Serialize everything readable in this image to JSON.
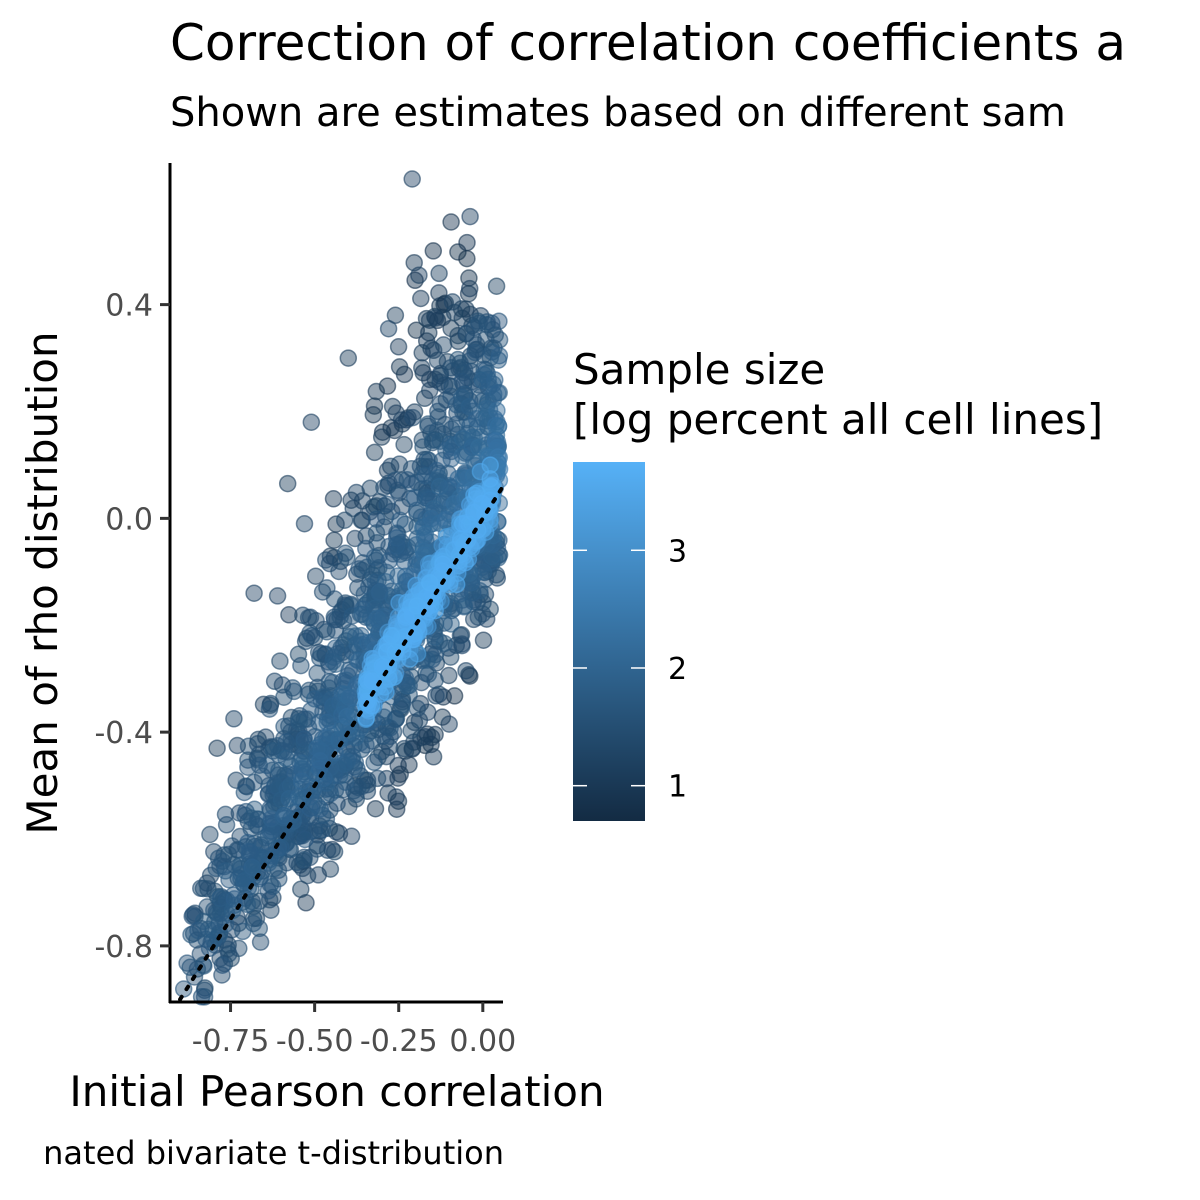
{
  "chart_data": {
    "type": "scatter",
    "title": "Correction of correlation coefficients a",
    "subtitle": "Shown are estimates based on different sam",
    "caption": "nated bivariate t-distribution",
    "xlabel": "Initial Pearson correlation",
    "ylabel": "Mean of rho distribution",
    "xlim": [
      -0.93,
      0.06
    ],
    "ylim": [
      -0.905,
      0.665
    ],
    "x_ticks": [
      -0.75,
      -0.5,
      -0.25,
      0.0
    ],
    "x_tick_labels": [
      "-0.75",
      "-0.50",
      "-0.25",
      "0.00"
    ],
    "y_ticks": [
      -0.8,
      -0.4,
      0.0,
      0.4
    ],
    "y_tick_labels": [
      "-0.8",
      "-0.4",
      "0.0",
      "0.4"
    ],
    "grid": false,
    "reference_line": {
      "style": "dotted",
      "slope": 1,
      "intercept": 0
    },
    "color_scale": {
      "title": "Sample size\n[log percent all cell lines]",
      "min": 0.7,
      "max": 3.75,
      "low_color": "#132b43",
      "high_color": "#56b1f7",
      "ticks": [
        1,
        2,
        3
      ],
      "tick_labels": [
        "1",
        "2",
        "3"
      ]
    },
    "point_cloud": {
      "x_range": [
        -0.9,
        0.05
      ],
      "y_range": [
        -0.84,
        0.63
      ],
      "note_trend": "points follow y ≈ x with larger samples close to the diagonal"
    },
    "outliers": [
      {
        "x": -0.21,
        "y": 0.635,
        "c": 1.2
      },
      {
        "x": -0.19,
        "y": 0.455,
        "c": 1.2
      },
      {
        "x": -0.09,
        "y": 0.405,
        "c": 1.3
      },
      {
        "x": -0.26,
        "y": 0.38,
        "c": 1.1
      },
      {
        "x": -0.14,
        "y": 0.375,
        "c": 1.2
      },
      {
        "x": -0.28,
        "y": 0.355,
        "c": 1.3
      },
      {
        "x": -0.05,
        "y": 0.345,
        "c": 1.2
      },
      {
        "x": -0.4,
        "y": 0.3,
        "c": 1.1
      },
      {
        "x": -0.51,
        "y": 0.18,
        "c": 1.2
      },
      {
        "x": -0.53,
        "y": -0.01,
        "c": 1.3
      },
      {
        "x": -0.58,
        "y": 0.065,
        "c": 1.1
      },
      {
        "x": -0.68,
        "y": -0.14,
        "c": 1.2
      },
      {
        "x": -0.61,
        "y": -0.145,
        "c": 1.2
      },
      {
        "x": -0.79,
        "y": -0.43,
        "c": 1.1
      },
      {
        "x": -0.73,
        "y": -0.425,
        "c": 1.2
      },
      {
        "x": -0.74,
        "y": -0.375,
        "c": 1.3
      },
      {
        "x": -0.39,
        "y": -0.595,
        "c": 1.2
      },
      {
        "x": -0.05,
        "y": -0.285,
        "c": 1.3
      },
      {
        "x": -0.1,
        "y": -0.385,
        "c": 1.2
      },
      {
        "x": -0.87,
        "y": -0.84,
        "c": 1.6
      },
      {
        "x": -0.84,
        "y": -0.815,
        "c": 1.5
      }
    ]
  }
}
